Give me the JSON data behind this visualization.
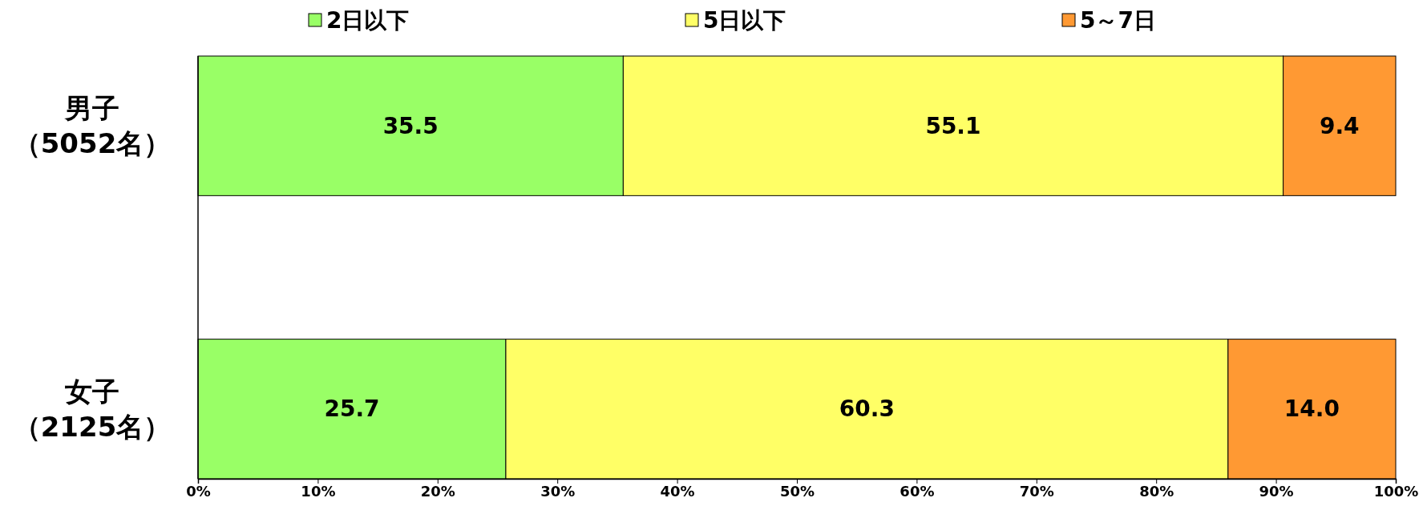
{
  "chart_data": {
    "type": "bar",
    "orientation": "horizontal",
    "stacked": true,
    "categories": [
      "男子（5052名）",
      "女子（2125名）"
    ],
    "series": [
      {
        "name": "2日以下",
        "color": "#99ff66",
        "values": [
          35.5,
          25.7
        ],
        "value_labels": [
          "35.5",
          "25.7"
        ]
      },
      {
        "name": "5日以下",
        "color": "#ffff66",
        "values": [
          55.1,
          60.3
        ],
        "value_labels": [
          "55.1",
          "60.3"
        ]
      },
      {
        "name": "5～7日",
        "color": "#ff9933",
        "values": [
          9.4,
          14.0
        ],
        "value_labels": [
          "9.4",
          "14.0"
        ]
      }
    ],
    "xlim": [
      0,
      100
    ],
    "xticks": [
      {
        "value": 0,
        "label": "0%"
      },
      {
        "value": 10,
        "label": "10%"
      },
      {
        "value": 20,
        "label": "20%"
      },
      {
        "value": 30,
        "label": "30%"
      },
      {
        "value": 40,
        "label": "40%"
      },
      {
        "value": 50,
        "label": "50%"
      },
      {
        "value": 60,
        "label": "60%"
      },
      {
        "value": 70,
        "label": "70%"
      },
      {
        "value": 80,
        "label": "80%"
      },
      {
        "value": 90,
        "label": "90%"
      },
      {
        "value": 100,
        "label": "100%"
      }
    ],
    "legend": "top",
    "grid": false
  }
}
